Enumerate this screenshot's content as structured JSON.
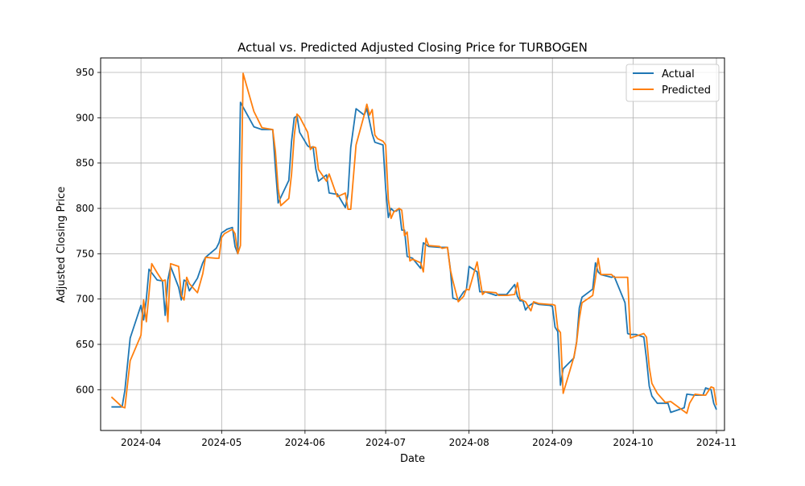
{
  "chart_data": {
    "type": "line",
    "title": "Actual vs. Predicted Adjusted Closing Price for TURBOGEN",
    "xlabel": "Date",
    "ylabel": "Adjusted Closing Price",
    "xlim": [
      "2024-03-17",
      "2024-11-04"
    ],
    "ylim": [
      555,
      966
    ],
    "x_ticks": [
      "2024-04",
      "2024-05",
      "2024-06",
      "2024-07",
      "2024-08",
      "2024-09",
      "2024-10",
      "2024-11"
    ],
    "y_ticks": [
      600,
      650,
      700,
      750,
      800,
      850,
      900,
      950
    ],
    "grid": true,
    "legend_position": "top-right",
    "series": [
      {
        "name": "Actual",
        "color": "#1f77b4",
        "points": [
          [
            "2024-03-21",
            581
          ],
          [
            "2024-03-25",
            581
          ],
          [
            "2024-03-26",
            599
          ],
          [
            "2024-03-28",
            657
          ],
          [
            "2024-04-01",
            693
          ],
          [
            "2024-04-02",
            677
          ],
          [
            "2024-04-03",
            700
          ],
          [
            "2024-04-04",
            733
          ],
          [
            "2024-04-07",
            721
          ],
          [
            "2024-04-09",
            720
          ],
          [
            "2024-04-10",
            682
          ],
          [
            "2024-04-11",
            721
          ],
          [
            "2024-04-12",
            736
          ],
          [
            "2024-04-15",
            713
          ],
          [
            "2024-04-16",
            699
          ],
          [
            "2024-04-17",
            721
          ],
          [
            "2024-04-18",
            719
          ],
          [
            "2024-04-19",
            709
          ],
          [
            "2024-04-22",
            723
          ],
          [
            "2024-04-24",
            740
          ],
          [
            "2024-04-25",
            746
          ],
          [
            "2024-04-29",
            756
          ],
          [
            "2024-04-30",
            762
          ],
          [
            "2024-05-01",
            773
          ],
          [
            "2024-05-02",
            775
          ],
          [
            "2024-05-03",
            777
          ],
          [
            "2024-05-05",
            779
          ],
          [
            "2024-05-06",
            758
          ],
          [
            "2024-05-07",
            750
          ],
          [
            "2024-05-08",
            917
          ],
          [
            "2024-05-13",
            890
          ],
          [
            "2024-05-16",
            887
          ],
          [
            "2024-05-20",
            887
          ],
          [
            "2024-05-21",
            845
          ],
          [
            "2024-05-22",
            806
          ],
          [
            "2024-05-26",
            831
          ],
          [
            "2024-05-27",
            874
          ],
          [
            "2024-05-28",
            900
          ],
          [
            "2024-05-29",
            902
          ],
          [
            "2024-05-30",
            884
          ],
          [
            "2024-06-02",
            869
          ],
          [
            "2024-06-03",
            867
          ],
          [
            "2024-06-04",
            868
          ],
          [
            "2024-06-05",
            844
          ],
          [
            "2024-06-06",
            830
          ],
          [
            "2024-06-09",
            837
          ],
          [
            "2024-06-10",
            817
          ],
          [
            "2024-06-12",
            816
          ],
          [
            "2024-06-13",
            816
          ],
          [
            "2024-06-16",
            801
          ],
          [
            "2024-06-17",
            816
          ],
          [
            "2024-06-18",
            867
          ],
          [
            "2024-06-20",
            910
          ],
          [
            "2024-06-23",
            903
          ],
          [
            "2024-06-24",
            910
          ],
          [
            "2024-06-26",
            882
          ],
          [
            "2024-06-27",
            873
          ],
          [
            "2024-06-30",
            870
          ],
          [
            "2024-07-01",
            822
          ],
          [
            "2024-07-02",
            790
          ],
          [
            "2024-07-03",
            800
          ],
          [
            "2024-07-04",
            797
          ],
          [
            "2024-07-05",
            797
          ],
          [
            "2024-07-06",
            800
          ],
          [
            "2024-07-07",
            776
          ],
          [
            "2024-07-08",
            776
          ],
          [
            "2024-07-09",
            747
          ],
          [
            "2024-07-11",
            745
          ],
          [
            "2024-07-14",
            734
          ],
          [
            "2024-07-15",
            762
          ],
          [
            "2024-07-17",
            758
          ],
          [
            "2024-07-21",
            757
          ],
          [
            "2024-07-22",
            757
          ],
          [
            "2024-07-24",
            757
          ],
          [
            "2024-07-25",
            734
          ],
          [
            "2024-07-26",
            701
          ],
          [
            "2024-07-28",
            699
          ],
          [
            "2024-07-30",
            708
          ],
          [
            "2024-07-31",
            710
          ],
          [
            "2024-08-01",
            736
          ],
          [
            "2024-08-04",
            730
          ],
          [
            "2024-08-05",
            708
          ],
          [
            "2024-08-07",
            708
          ],
          [
            "2024-08-11",
            704
          ],
          [
            "2024-08-12",
            705
          ],
          [
            "2024-08-15",
            705
          ],
          [
            "2024-08-18",
            716
          ],
          [
            "2024-08-19",
            703
          ],
          [
            "2024-08-20",
            698
          ],
          [
            "2024-08-21",
            698
          ],
          [
            "2024-08-22",
            688
          ],
          [
            "2024-08-23",
            692
          ],
          [
            "2024-08-25",
            696
          ],
          [
            "2024-08-27",
            694
          ],
          [
            "2024-08-31",
            693
          ],
          [
            "2024-09-01",
            692
          ],
          [
            "2024-09-02",
            669
          ],
          [
            "2024-09-03",
            664
          ],
          [
            "2024-09-04",
            605
          ],
          [
            "2024-09-05",
            623
          ],
          [
            "2024-09-09",
            635
          ],
          [
            "2024-09-10",
            653
          ],
          [
            "2024-09-11",
            690
          ],
          [
            "2024-09-12",
            702
          ],
          [
            "2024-09-16",
            711
          ],
          [
            "2024-09-17",
            740
          ],
          [
            "2024-09-18",
            730
          ],
          [
            "2024-09-19",
            727
          ],
          [
            "2024-09-23",
            724
          ],
          [
            "2024-09-24",
            725
          ],
          [
            "2024-09-28",
            696
          ],
          [
            "2024-09-29",
            662
          ],
          [
            "2024-09-30",
            661
          ],
          [
            "2024-10-02",
            661
          ],
          [
            "2024-10-03",
            660
          ],
          [
            "2024-10-05",
            658
          ],
          [
            "2024-10-06",
            634
          ],
          [
            "2024-10-07",
            604
          ],
          [
            "2024-10-08",
            593
          ],
          [
            "2024-10-10",
            585
          ],
          [
            "2024-10-14",
            585
          ],
          [
            "2024-10-15",
            575
          ],
          [
            "2024-10-20",
            580
          ],
          [
            "2024-10-21",
            595
          ],
          [
            "2024-10-24",
            594
          ],
          [
            "2024-10-27",
            594
          ],
          [
            "2024-10-28",
            602
          ],
          [
            "2024-10-30",
            600
          ],
          [
            "2024-10-31",
            585
          ],
          [
            "2024-11-01",
            578
          ]
        ]
      },
      {
        "name": "Predicted",
        "color": "#ff7f0e",
        "points": [
          [
            "2024-03-21",
            592
          ],
          [
            "2024-03-25",
            581
          ],
          [
            "2024-03-26",
            580
          ],
          [
            "2024-03-28",
            632
          ],
          [
            "2024-04-01",
            660
          ],
          [
            "2024-04-02",
            699
          ],
          [
            "2024-04-03",
            675
          ],
          [
            "2024-04-04",
            706
          ],
          [
            "2024-04-05",
            739
          ],
          [
            "2024-04-07",
            729
          ],
          [
            "2024-04-09",
            720
          ],
          [
            "2024-04-10",
            721
          ],
          [
            "2024-04-11",
            675
          ],
          [
            "2024-04-12",
            739
          ],
          [
            "2024-04-15",
            736
          ],
          [
            "2024-04-16",
            704
          ],
          [
            "2024-04-17",
            699
          ],
          [
            "2024-04-18",
            724
          ],
          [
            "2024-04-19",
            717
          ],
          [
            "2024-04-22",
            707
          ],
          [
            "2024-04-24",
            728
          ],
          [
            "2024-04-25",
            746
          ],
          [
            "2024-04-29",
            745
          ],
          [
            "2024-04-30",
            745
          ],
          [
            "2024-05-01",
            768
          ],
          [
            "2024-05-02",
            772
          ],
          [
            "2024-05-05",
            777
          ],
          [
            "2024-05-06",
            772
          ],
          [
            "2024-05-07",
            750
          ],
          [
            "2024-05-08",
            759
          ],
          [
            "2024-05-09",
            949
          ],
          [
            "2024-05-13",
            907
          ],
          [
            "2024-05-16",
            889
          ],
          [
            "2024-05-20",
            887
          ],
          [
            "2024-05-21",
            863
          ],
          [
            "2024-05-22",
            822
          ],
          [
            "2024-05-23",
            803
          ],
          [
            "2024-05-26",
            811
          ],
          [
            "2024-05-27",
            838
          ],
          [
            "2024-05-28",
            880
          ],
          [
            "2024-05-29",
            904
          ],
          [
            "2024-05-30",
            901
          ],
          [
            "2024-06-02",
            884
          ],
          [
            "2024-06-03",
            865
          ],
          [
            "2024-06-04",
            868
          ],
          [
            "2024-06-05",
            867
          ],
          [
            "2024-06-06",
            843
          ],
          [
            "2024-06-09",
            830
          ],
          [
            "2024-06-10",
            838
          ],
          [
            "2024-06-12",
            821
          ],
          [
            "2024-06-13",
            813
          ],
          [
            "2024-06-16",
            817
          ],
          [
            "2024-06-17",
            799
          ],
          [
            "2024-06-18",
            799
          ],
          [
            "2024-06-20",
            870
          ],
          [
            "2024-06-23",
            903
          ],
          [
            "2024-06-24",
            915
          ],
          [
            "2024-06-25",
            903
          ],
          [
            "2024-06-26",
            909
          ],
          [
            "2024-06-27",
            881
          ],
          [
            "2024-06-28",
            877
          ],
          [
            "2024-06-30",
            874
          ],
          [
            "2024-07-01",
            870
          ],
          [
            "2024-07-02",
            810
          ],
          [
            "2024-07-03",
            789
          ],
          [
            "2024-07-04",
            796
          ],
          [
            "2024-07-05",
            798
          ],
          [
            "2024-07-06",
            800
          ],
          [
            "2024-07-07",
            798
          ],
          [
            "2024-07-08",
            770
          ],
          [
            "2024-07-09",
            774
          ],
          [
            "2024-07-10",
            742
          ],
          [
            "2024-07-11",
            744
          ],
          [
            "2024-07-14",
            740
          ],
          [
            "2024-07-15",
            730
          ],
          [
            "2024-07-16",
            767
          ],
          [
            "2024-07-17",
            759
          ],
          [
            "2024-07-21",
            758
          ],
          [
            "2024-07-22",
            756
          ],
          [
            "2024-07-24",
            757
          ],
          [
            "2024-07-25",
            733
          ],
          [
            "2024-07-26",
            720
          ],
          [
            "2024-07-28",
            697
          ],
          [
            "2024-07-30",
            703
          ],
          [
            "2024-07-31",
            711
          ],
          [
            "2024-08-01",
            710
          ],
          [
            "2024-08-04",
            741
          ],
          [
            "2024-08-05",
            723
          ],
          [
            "2024-08-06",
            705
          ],
          [
            "2024-08-07",
            708
          ],
          [
            "2024-08-11",
            707
          ],
          [
            "2024-08-12",
            704
          ],
          [
            "2024-08-15",
            704
          ],
          [
            "2024-08-18",
            705
          ],
          [
            "2024-08-19",
            718
          ],
          [
            "2024-08-20",
            700
          ],
          [
            "2024-08-22",
            697
          ],
          [
            "2024-08-23",
            692
          ],
          [
            "2024-08-24",
            687
          ],
          [
            "2024-08-25",
            697
          ],
          [
            "2024-08-27",
            695
          ],
          [
            "2024-08-31",
            694
          ],
          [
            "2024-09-01",
            694
          ],
          [
            "2024-09-02",
            693
          ],
          [
            "2024-09-03",
            667
          ],
          [
            "2024-09-04",
            663
          ],
          [
            "2024-09-05",
            596
          ],
          [
            "2024-09-09",
            636
          ],
          [
            "2024-09-10",
            652
          ],
          [
            "2024-09-11",
            678
          ],
          [
            "2024-09-12",
            696
          ],
          [
            "2024-09-16",
            704
          ],
          [
            "2024-09-17",
            723
          ],
          [
            "2024-09-18",
            745
          ],
          [
            "2024-09-19",
            727
          ],
          [
            "2024-09-23",
            727
          ],
          [
            "2024-09-24",
            724
          ],
          [
            "2024-09-28",
            724
          ],
          [
            "2024-09-29",
            724
          ],
          [
            "2024-09-30",
            657
          ],
          [
            "2024-10-02",
            659
          ],
          [
            "2024-10-03",
            660
          ],
          [
            "2024-10-05",
            662
          ],
          [
            "2024-10-06",
            658
          ],
          [
            "2024-10-07",
            625
          ],
          [
            "2024-10-08",
            607
          ],
          [
            "2024-10-10",
            596
          ],
          [
            "2024-10-13",
            586
          ],
          [
            "2024-10-15",
            587
          ],
          [
            "2024-10-20",
            576
          ],
          [
            "2024-10-21",
            574
          ],
          [
            "2024-10-22",
            585
          ],
          [
            "2024-10-24",
            595
          ],
          [
            "2024-10-27",
            594
          ],
          [
            "2024-10-28",
            594
          ],
          [
            "2024-10-30",
            603
          ],
          [
            "2024-10-31",
            602
          ],
          [
            "2024-11-01",
            583
          ]
        ]
      }
    ]
  }
}
